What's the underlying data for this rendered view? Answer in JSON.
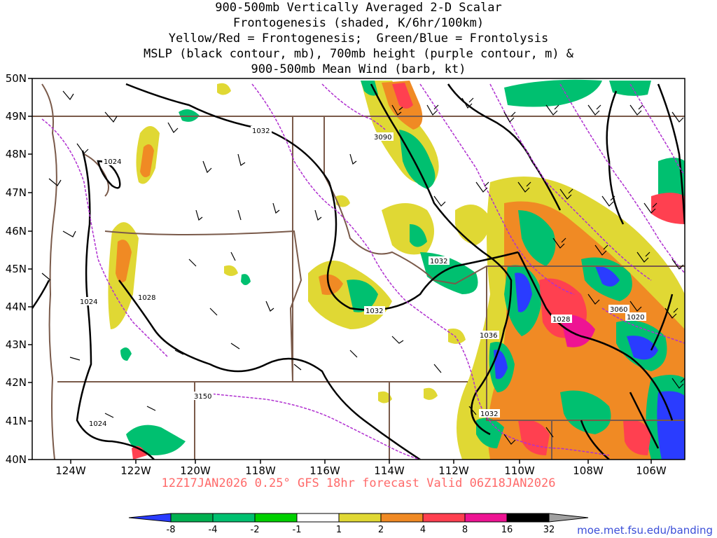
{
  "title_lines": [
    "900-500mb Vertically Averaged 2-D Scalar",
    "Frontogenesis (shaded, K/6hr/100km)",
    "Yellow/Red = Frontogenesis;  Green/Blue = Frontolysis",
    "MSLP (black contour, mb), 700mb height (purple contour, m) &",
    "900-500mb Mean Wind (barb, kt)"
  ],
  "lat_labels": [
    "50N",
    "49N",
    "48N",
    "47N",
    "46N",
    "45N",
    "44N",
    "43N",
    "42N",
    "41N",
    "40N"
  ],
  "lon_labels": [
    "124W",
    "122W",
    "120W",
    "118W",
    "116W",
    "114W",
    "112W",
    "110W",
    "108W",
    "106W"
  ],
  "contour_labels": {
    "mslp": [
      "1032",
      "1024",
      "1028",
      "1024",
      "1032",
      "1032",
      "1036",
      "1028",
      "1020",
      "1032",
      "1024"
    ],
    "height": [
      "3090",
      "3060",
      "3150"
    ]
  },
  "valid_time": "12Z17JAN2026 0.25° GFS 18hr forecast Valid 06Z18JAN2026",
  "colorbar": {
    "labels": [
      "-8",
      "-4",
      "-2",
      "-1",
      "1",
      "2",
      "4",
      "8",
      "16",
      "32"
    ],
    "colors": [
      "#2a3cff",
      "#00b050",
      "#00c070",
      "#00d000",
      "#ffffff",
      "#e0d834",
      "#f08a24",
      "#ff4050",
      "#ee1493",
      "#000000",
      "#a0a0a0"
    ]
  },
  "url": "moe.met.fsu.edu/banding",
  "colors": {
    "state_borders": "#7a5a4a",
    "mslp_contour": "#000000",
    "height_contour": "#b030d0",
    "frontolysis_blue": "#2a3cff",
    "frontolysis_green": "#00c070",
    "frontogenesis_yellow": "#e0d834",
    "frontogenesis_orange": "#f08a24",
    "frontogenesis_red": "#ff4050"
  }
}
